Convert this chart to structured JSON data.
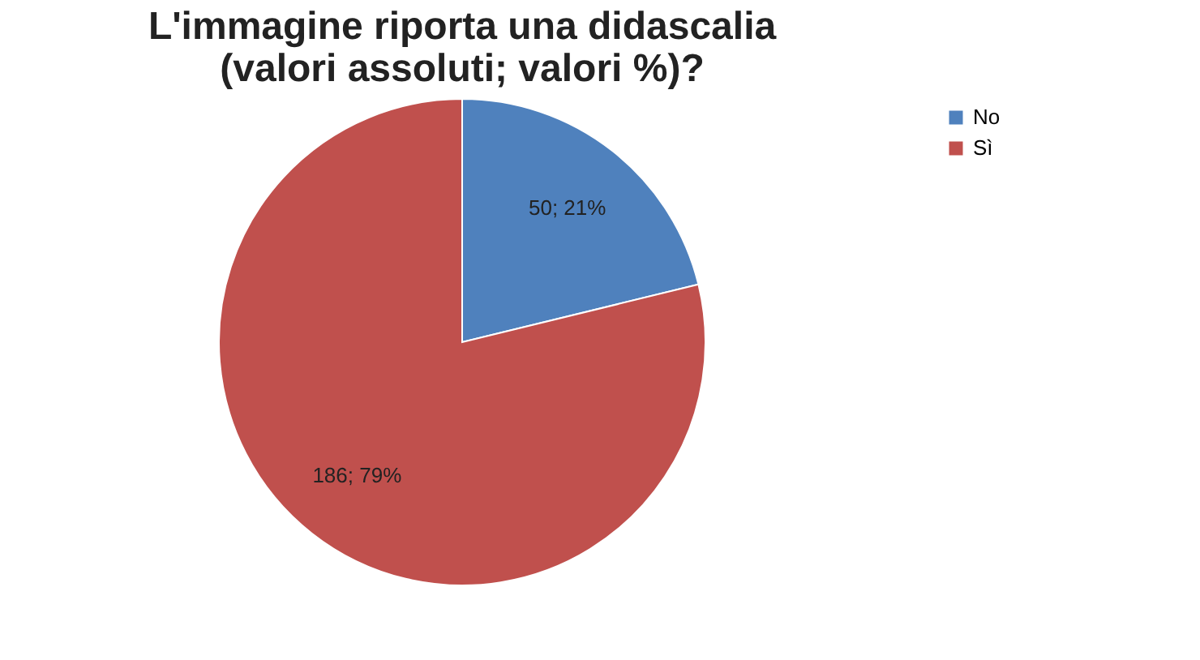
{
  "chart_data": {
    "type": "pie",
    "title": "L'immagine riporta una didascalia (valori assoluti; valori %)?",
    "categories": [
      "No",
      "Sì"
    ],
    "values": [
      50,
      186
    ],
    "colors": [
      "#4f81bd",
      "#c0504d"
    ],
    "value_labels": [
      "50; 21%",
      "186; 79%"
    ],
    "legend": "right"
  }
}
